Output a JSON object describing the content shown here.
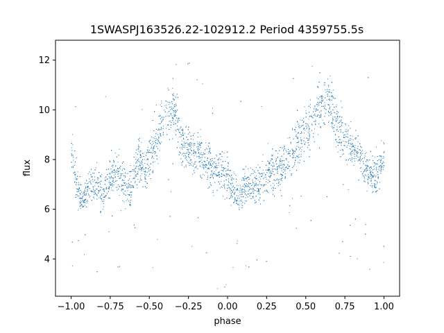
{
  "chart_data": {
    "type": "scatter",
    "title": "1SWASPJ163526.22-102912.2 Period 4359755.5s",
    "xlabel": "phase",
    "ylabel": "flux",
    "xlim": [
      -1.1,
      1.1
    ],
    "ylim": [
      2.5,
      12.8
    ],
    "x_ticks": [
      -1.0,
      -0.75,
      -0.5,
      -0.25,
      0.0,
      0.25,
      0.5,
      0.75,
      1.0
    ],
    "x_tick_labels": [
      "−1.00",
      "−0.75",
      "−0.50",
      "−0.25",
      "0.00",
      "0.25",
      "0.50",
      "0.75",
      "1.00"
    ],
    "y_ticks": [
      4,
      6,
      8,
      10,
      12
    ],
    "y_tick_labels": [
      "4",
      "6",
      "8",
      "10",
      "12"
    ],
    "grid": false,
    "marker_color": "#1f77b4",
    "series": [
      {
        "points_note_free": true,
        "x": [
          -0.99,
          -0.97,
          -0.95,
          -0.93,
          -0.9,
          -0.88,
          -0.86,
          -0.83,
          -0.8,
          -0.78,
          -0.75,
          -0.72,
          -0.7,
          -0.67,
          -0.64,
          -0.62,
          -0.59,
          -0.56,
          -0.53,
          -0.5,
          -0.47,
          -0.44,
          -0.41,
          -0.38,
          -0.35,
          -0.32,
          -0.3,
          -0.27,
          -0.24,
          -0.21,
          -0.18,
          -0.15,
          -0.12,
          -0.09,
          -0.06,
          -0.03,
          0.0,
          0.01,
          0.03,
          0.05,
          0.07,
          0.1,
          0.12,
          0.14,
          0.17,
          0.2,
          0.22,
          0.25,
          0.28,
          0.3,
          0.33,
          0.36,
          0.38,
          0.41,
          0.44,
          0.47,
          0.5,
          0.53,
          0.56,
          0.59,
          0.62,
          0.65,
          0.68,
          0.7,
          0.73,
          0.76,
          0.79,
          0.82,
          0.85,
          0.88,
          0.91,
          0.94,
          0.97,
          0.99
        ],
        "y": [
          8.3,
          7.2,
          6.6,
          6.3,
          6.8,
          7.1,
          6.9,
          7.0,
          6.5,
          6.9,
          7.2,
          7.6,
          7.3,
          7.0,
          6.9,
          6.8,
          7.6,
          8.0,
          7.7,
          8.2,
          8.6,
          9.1,
          9.5,
          9.9,
          10.0,
          9.4,
          8.8,
          8.5,
          8.4,
          8.2,
          8.3,
          8.0,
          7.8,
          7.6,
          7.7,
          7.3,
          7.2,
          7.1,
          6.9,
          6.7,
          6.6,
          6.8,
          7.0,
          7.1,
          7.0,
          6.9,
          7.3,
          7.5,
          7.6,
          7.4,
          7.7,
          7.9,
          8.0,
          8.4,
          8.6,
          8.9,
          9.1,
          9.4,
          9.8,
          10.1,
          10.3,
          10.2,
          9.9,
          9.3,
          9.0,
          8.7,
          8.6,
          8.4,
          8.0,
          7.7,
          7.5,
          7.3,
          7.6,
          8.3
        ],
        "spread": [
          1.4,
          1.3,
          1.2,
          1.1,
          1.1,
          1.2,
          1.3,
          1.3,
          1.4,
          1.4,
          1.5,
          1.6,
          1.6,
          1.5,
          1.4,
          1.4,
          1.5,
          1.6,
          1.6,
          1.7,
          1.7,
          1.8,
          1.8,
          1.8,
          1.8,
          1.8,
          1.7,
          1.6,
          1.6,
          1.5,
          1.5,
          1.5,
          1.5,
          1.5,
          1.5,
          1.5,
          1.4,
          1.3,
          1.3,
          1.3,
          1.3,
          1.3,
          1.3,
          1.3,
          1.4,
          1.4,
          1.5,
          1.5,
          1.6,
          1.6,
          1.6,
          1.6,
          1.6,
          1.7,
          1.7,
          1.7,
          1.8,
          1.8,
          1.8,
          1.8,
          1.8,
          1.8,
          1.8,
          1.7,
          1.7,
          1.6,
          1.6,
          1.5,
          1.5,
          1.5,
          1.4,
          1.4,
          1.4,
          1.4
        ]
      }
    ]
  }
}
